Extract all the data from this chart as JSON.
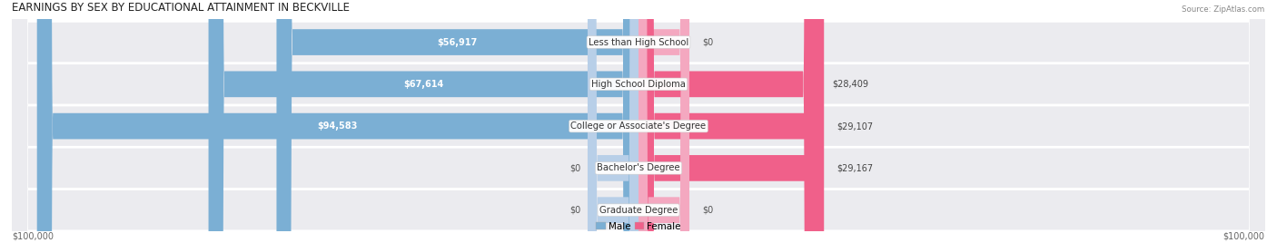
{
  "title": "EARNINGS BY SEX BY EDUCATIONAL ATTAINMENT IN BECKVILLE",
  "source": "Source: ZipAtlas.com",
  "categories": [
    "Less than High School",
    "High School Diploma",
    "College or Associate's Degree",
    "Bachelor's Degree",
    "Graduate Degree"
  ],
  "male_values": [
    56917,
    67614,
    94583,
    0,
    0
  ],
  "female_values": [
    0,
    28409,
    29107,
    29167,
    0
  ],
  "male_stub": [
    0,
    0,
    0,
    1,
    1
  ],
  "female_stub": [
    1,
    0,
    0,
    0,
    1
  ],
  "male_color": "#7bafd4",
  "male_stub_color": "#b8cfe8",
  "female_color": "#f0608a",
  "female_stub_color": "#f4a8c0",
  "row_bg_color": "#ebebef",
  "max_value": 100000,
  "stub_size": 8000,
  "title_fontsize": 8.5,
  "label_fontsize": 7.2,
  "value_fontsize": 7.0,
  "axis_fontsize": 7.0,
  "legend_fontsize": 7.5,
  "background_color": "#ffffff",
  "cat_label_fontsize": 7.2
}
